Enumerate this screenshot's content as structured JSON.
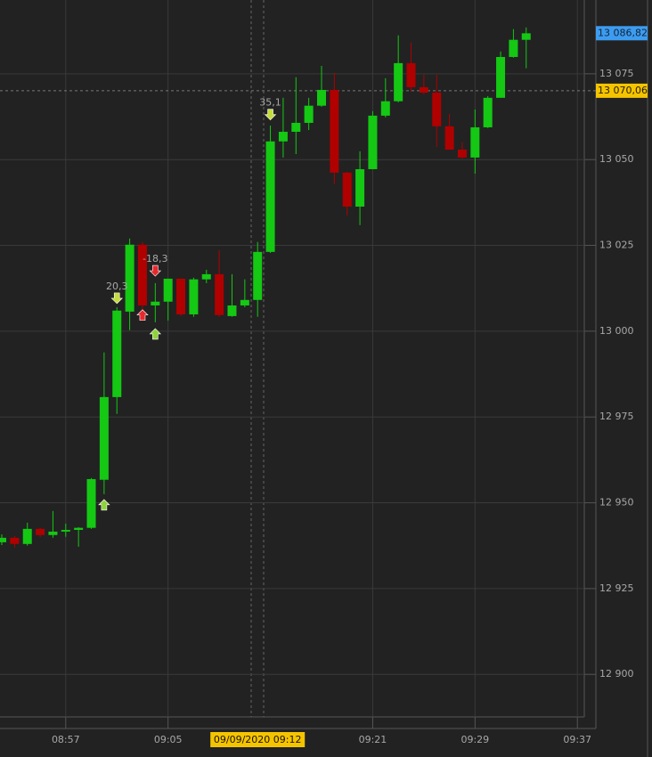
{
  "chart_data": {
    "type": "candlestick",
    "categories": [
      null,
      null,
      null,
      null,
      null,
      "08:57",
      null,
      null,
      null,
      null,
      null,
      null,
      null,
      "09:05",
      null,
      null,
      null,
      null,
      null,
      null,
      null,
      null,
      null,
      null,
      null,
      null,
      null,
      null,
      null,
      "09:21",
      null,
      null,
      null,
      null,
      null,
      null,
      null,
      "09:29",
      null,
      null,
      null,
      null,
      null,
      null,
      null,
      "09:37"
    ],
    "open": [
      12938.5,
      12939.8,
      12938.0,
      12942.4,
      12940.6,
      12941.6,
      12942.1,
      12942.7,
      12956.7,
      12980.8,
      13005.7,
      13025.2,
      13007.5,
      13008.6,
      13015.3,
      13004.9,
      13015.1,
      13016.6,
      13004.4,
      13007.5,
      13009.1,
      13023.1,
      13055.3,
      13058.1,
      13060.7,
      13065.7,
      13070.3,
      13046.2,
      13036.3,
      13047.2,
      13062.8,
      13067.0,
      13078.1,
      13071.1,
      13069.5,
      13059.7,
      13052.9,
      13050.6,
      13059.4,
      13068.0,
      13079.9,
      13084.9,
      null,
      null,
      null,
      null
    ],
    "high": [
      12940.8,
      12940.3,
      12944.2,
      12942.7,
      12947.6,
      12943.9,
      12942.9,
      12957.2,
      12993.8,
      13007.0,
      13027.0,
      13026.0,
      13014.0,
      13015.3,
      13015.3,
      13015.6,
      13017.9,
      13023.6,
      13016.6,
      13015.1,
      13026.0,
      13059.9,
      13068.0,
      13074.0,
      13068.0,
      13077.3,
      13075.3,
      13046.4,
      13052.4,
      13064.1,
      13073.7,
      13086.2,
      13084.1,
      13074.7,
      13074.7,
      13063.3,
      13055.0,
      13064.6,
      13068.5,
      13081.5,
      13088.0,
      13088.5,
      null,
      null,
      null,
      null
    ],
    "low": [
      12937.7,
      12936.9,
      12937.5,
      12940.1,
      12939.8,
      12940.1,
      12937.2,
      12942.4,
      12952.5,
      12975.9,
      13000.3,
      13005.7,
      13002.6,
      13003.1,
      13004.4,
      13004.2,
      13014.0,
      13004.2,
      13004.2,
      13007.0,
      13004.2,
      13022.8,
      13050.6,
      13051.6,
      13058.6,
      13065.4,
      13042.8,
      13033.7,
      13030.9,
      13047.2,
      13062.3,
      13066.7,
      13069.8,
      13069.0,
      13053.7,
      13052.9,
      13050.3,
      13045.9,
      13059.2,
      13068.0,
      13079.7,
      13076.6,
      null,
      null,
      null,
      null
    ],
    "close": [
      12939.8,
      12938.0,
      12942.4,
      12940.6,
      12941.6,
      12942.1,
      12942.7,
      12956.9,
      12980.8,
      13006.0,
      13025.2,
      13007.5,
      13008.6,
      13015.3,
      13004.9,
      13015.1,
      13016.6,
      13004.7,
      13007.5,
      13009.1,
      13023.1,
      13055.3,
      13058.1,
      13060.7,
      13065.7,
      13070.3,
      13046.2,
      13036.3,
      13047.2,
      13062.8,
      13067.0,
      13078.1,
      13071.1,
      13069.5,
      13059.7,
      13052.9,
      13050.6,
      13059.4,
      13068.0,
      13079.9,
      13084.9,
      13086.8,
      null,
      null,
      null,
      null
    ],
    "up_color": "#14c814",
    "down_color": "#b00000",
    "ylim": [
      12887.6,
      13096.5
    ],
    "yticks": [
      {
        "value": 12900,
        "label": "12 900"
      },
      {
        "value": 12925,
        "label": "12 925"
      },
      {
        "value": 12950,
        "label": "12 950"
      },
      {
        "value": 12975,
        "label": "12 975"
      },
      {
        "value": 13000,
        "label": "13 000"
      },
      {
        "value": 13025,
        "label": "13 025"
      },
      {
        "value": 13050,
        "label": "13 050"
      },
      {
        "value": 13075,
        "label": "13 075"
      }
    ],
    "grid": true,
    "last_price": {
      "value": 13086.82,
      "label": "13 086,82",
      "color": "#3d9cf0"
    },
    "crosshair": {
      "x_label": "09/09/2020 09:12",
      "y_value": 13070.06,
      "y_label": "13 070,06",
      "color": "#f5c400"
    },
    "signals": [
      {
        "direction": "up",
        "color": "#8ed33a",
        "values": [
          null,
          null,
          null,
          null,
          null,
          null,
          null,
          null,
          12949.4,
          null,
          null,
          null,
          12999.2,
          null,
          null,
          null,
          null,
          null,
          null,
          null,
          null,
          null,
          null,
          null,
          null,
          null,
          null,
          null,
          null,
          null,
          null,
          null,
          null,
          null,
          null,
          null,
          null,
          null,
          null,
          null,
          null,
          null,
          null,
          null,
          null,
          null
        ]
      },
      {
        "direction": "up",
        "color": "#e8282d",
        "values": [
          null,
          null,
          null,
          null,
          null,
          null,
          null,
          null,
          null,
          null,
          null,
          13004.7,
          null,
          null,
          null,
          null,
          null,
          null,
          null,
          null,
          null,
          null,
          null,
          null,
          null,
          null,
          null,
          null,
          null,
          null,
          null,
          null,
          null,
          null,
          null,
          null,
          null,
          null,
          null,
          null,
          null,
          null,
          null,
          null,
          null,
          null
        ]
      },
      {
        "direction": "down",
        "color": "#c5dc3c",
        "values": [
          null,
          null,
          null,
          null,
          null,
          null,
          null,
          null,
          null,
          13009.6,
          null,
          null,
          null,
          null,
          null,
          null,
          null,
          null,
          null,
          null,
          null,
          13063.1,
          null,
          null,
          null,
          null,
          null,
          null,
          null,
          null,
          null,
          null,
          null,
          null,
          null,
          null,
          null,
          null,
          null,
          null,
          null,
          null,
          null,
          null,
          null,
          null
        ],
        "value_labels": [
          null,
          null,
          null,
          null,
          null,
          null,
          null,
          null,
          null,
          "20,3",
          null,
          null,
          null,
          null,
          null,
          null,
          null,
          null,
          null,
          null,
          null,
          "35,1",
          null,
          null,
          null,
          null,
          null,
          null,
          null,
          null,
          null,
          null,
          null,
          null,
          null,
          null,
          null,
          null,
          null,
          null,
          null,
          null,
          null,
          null,
          null,
          null
        ]
      },
      {
        "direction": "down",
        "color": "#e8282d",
        "values": [
          null,
          null,
          null,
          null,
          null,
          null,
          null,
          null,
          null,
          null,
          null,
          null,
          13017.6,
          null,
          null,
          null,
          null,
          null,
          null,
          null,
          null,
          null,
          null,
          null,
          null,
          null,
          null,
          null,
          null,
          null,
          null,
          null,
          null,
          null,
          null,
          null,
          null,
          null,
          null,
          null,
          null,
          null,
          null,
          null,
          null,
          null
        ],
        "value_labels": [
          null,
          null,
          null,
          null,
          null,
          null,
          null,
          null,
          null,
          null,
          null,
          null,
          "-18,3",
          null,
          null,
          null,
          null,
          null,
          null,
          null,
          null,
          null,
          null,
          null,
          null,
          null,
          null,
          null,
          null,
          null,
          null,
          null,
          null,
          null,
          null,
          null,
          null,
          null,
          null,
          null,
          null,
          null,
          null,
          null,
          null,
          null
        ]
      }
    ]
  }
}
